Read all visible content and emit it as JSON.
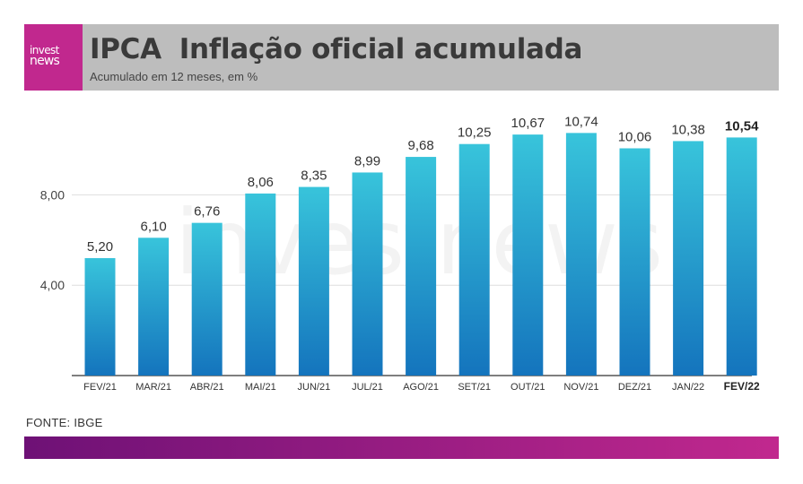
{
  "header": {
    "logo_line1": "invest",
    "logo_line2": "news",
    "title_main": "IPCA",
    "title_rest": "Inflação oficial acumulada",
    "subtitle": "Acumulado em 12 meses, em %"
  },
  "footer": {
    "source": "FONTE: IBGE"
  },
  "watermark": "investnews",
  "colors": {
    "bar_top": "#38c4db",
    "bar_bottom": "#1474bd",
    "logo_bg": "#c1288e",
    "gradient_start": "#6e1176",
    "gradient_end": "#c1288e"
  },
  "chart_data": {
    "type": "bar",
    "title": "IPCA Inflação oficial acumulada",
    "subtitle": "Acumulado em 12 meses, em %",
    "categories": [
      "FEV/21",
      "MAR/21",
      "ABR/21",
      "MAI/21",
      "JUN/21",
      "JUL/21",
      "AGO/21",
      "SET/21",
      "OUT/21",
      "NOV/21",
      "DEZ/21",
      "JAN/22",
      "FEV/22"
    ],
    "values": [
      5.2,
      6.1,
      6.76,
      8.06,
      8.35,
      8.99,
      9.68,
      10.25,
      10.67,
      10.74,
      10.06,
      10.38,
      10.54
    ],
    "value_labels": [
      "5,20",
      "6,10",
      "6,76",
      "8,06",
      "8,35",
      "8,99",
      "9,68",
      "10,25",
      "10,67",
      "10,74",
      "10,06",
      "10,38",
      "10,54"
    ],
    "yticks": [
      4,
      8
    ],
    "ytick_labels": [
      "4,00",
      "8,00"
    ],
    "ylim": [
      0,
      12
    ],
    "grid": true,
    "highlight_last": true
  }
}
